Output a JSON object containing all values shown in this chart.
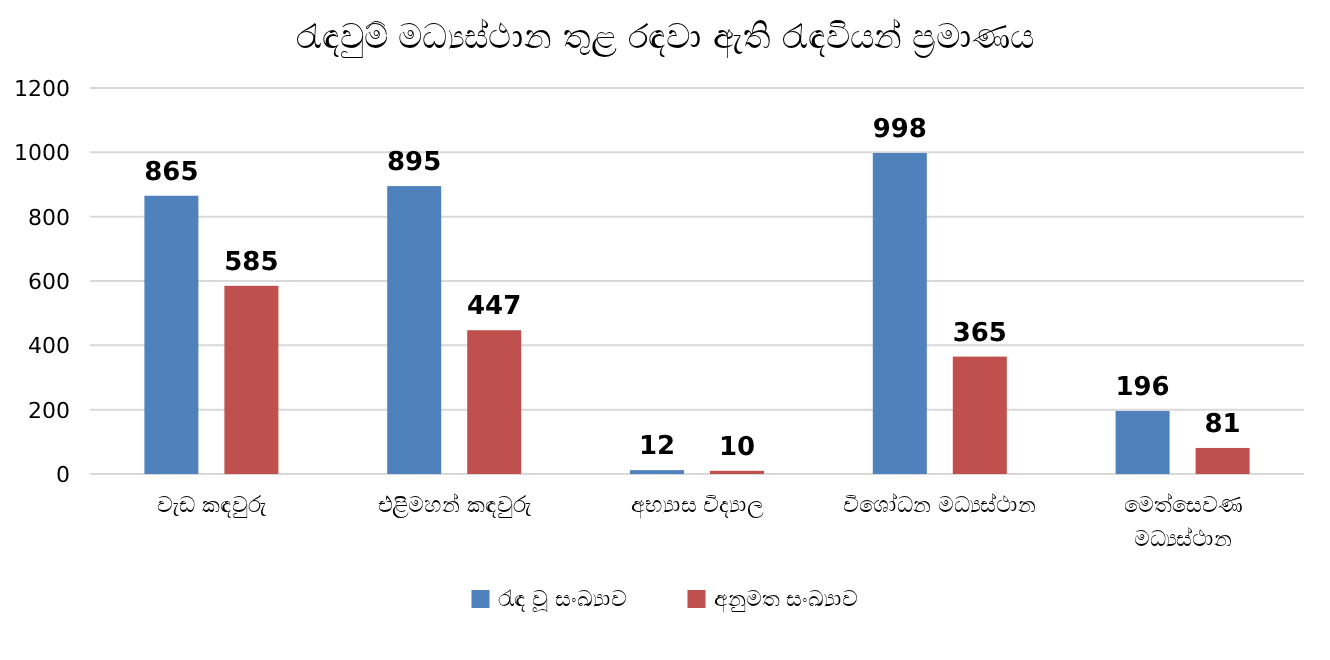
{
  "chart_data": {
    "type": "bar",
    "title": "රැඳවුම් මධ්‍යස්ථාන තුළ රඳවා ඇති රැඳවියන් ප්‍රමාණය",
    "categories": [
      "වැඩ කඳවුරු",
      "එළිමහන් කඳවුරු",
      "අභ්‍යාස විද්‍යාල",
      "විශෝධන මධ්‍යස්ථාන",
      "මෙත්සෙවණ මධ්‍යස්ථාන"
    ],
    "series": [
      {
        "name": "රැඳ වූ සංඛ්‍යාව",
        "color": "#4f81bd",
        "values": [
          865,
          895,
          12,
          998,
          196
        ]
      },
      {
        "name": "අනුමත සංඛ්‍යාව",
        "color": "#c0504d",
        "values": [
          585,
          447,
          10,
          365,
          81
        ]
      }
    ],
    "ylim": [
      0,
      1200
    ],
    "yticks": [
      0,
      200,
      400,
      600,
      800,
      1000,
      1200
    ],
    "grid": "y",
    "legend": "bottom",
    "data_labels": true
  }
}
